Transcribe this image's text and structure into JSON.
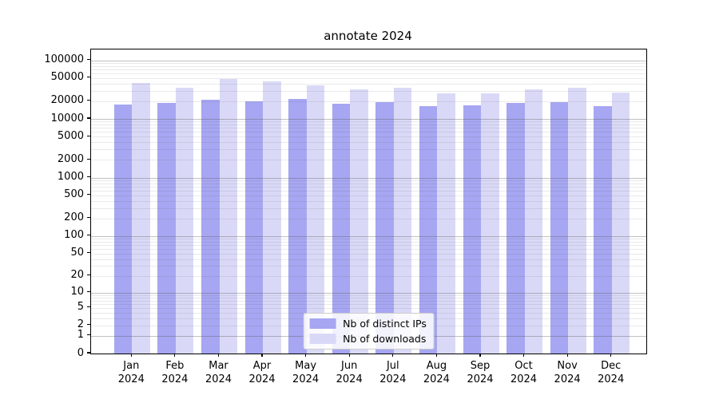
{
  "chart_data": {
    "type": "bar",
    "title": "annotate 2024",
    "categories": [
      "Jan",
      "Feb",
      "Mar",
      "Apr",
      "May",
      "Jun",
      "Jul",
      "Aug",
      "Sep",
      "Oct",
      "Nov",
      "Dec"
    ],
    "category_year": "2024",
    "series": [
      {
        "name": "Nb of distinct IPs",
        "color": "#a6a6f2",
        "values": [
          17700,
          18800,
          21400,
          20200,
          22000,
          18000,
          19200,
          16600,
          16800,
          18600,
          19400,
          16300
        ]
      },
      {
        "name": "Nb of downloads",
        "color": "#d9d9f7",
        "values": [
          40700,
          34100,
          48600,
          44300,
          37800,
          32100,
          33700,
          27700,
          27400,
          31700,
          34400,
          27900
        ]
      }
    ],
    "y_axis": {
      "scale": "log1p",
      "tick_labels": [
        100000,
        50000,
        20000,
        10000,
        5000,
        2000,
        1000,
        500,
        200,
        100,
        50,
        20,
        10,
        5,
        2,
        1,
        0
      ],
      "major_gridlines": [
        1,
        10,
        100,
        1000,
        10000,
        100000
      ],
      "minor_gridline_mantissas": [
        2,
        3,
        4,
        5,
        6,
        7,
        8,
        9
      ],
      "ylim": [
        0,
        152000
      ]
    },
    "x_axis": {
      "tick_count": 12
    },
    "legend": {
      "position": "lower center",
      "entries": [
        "Nb of distinct IPs",
        "Nb of downloads"
      ]
    },
    "grid": true
  }
}
